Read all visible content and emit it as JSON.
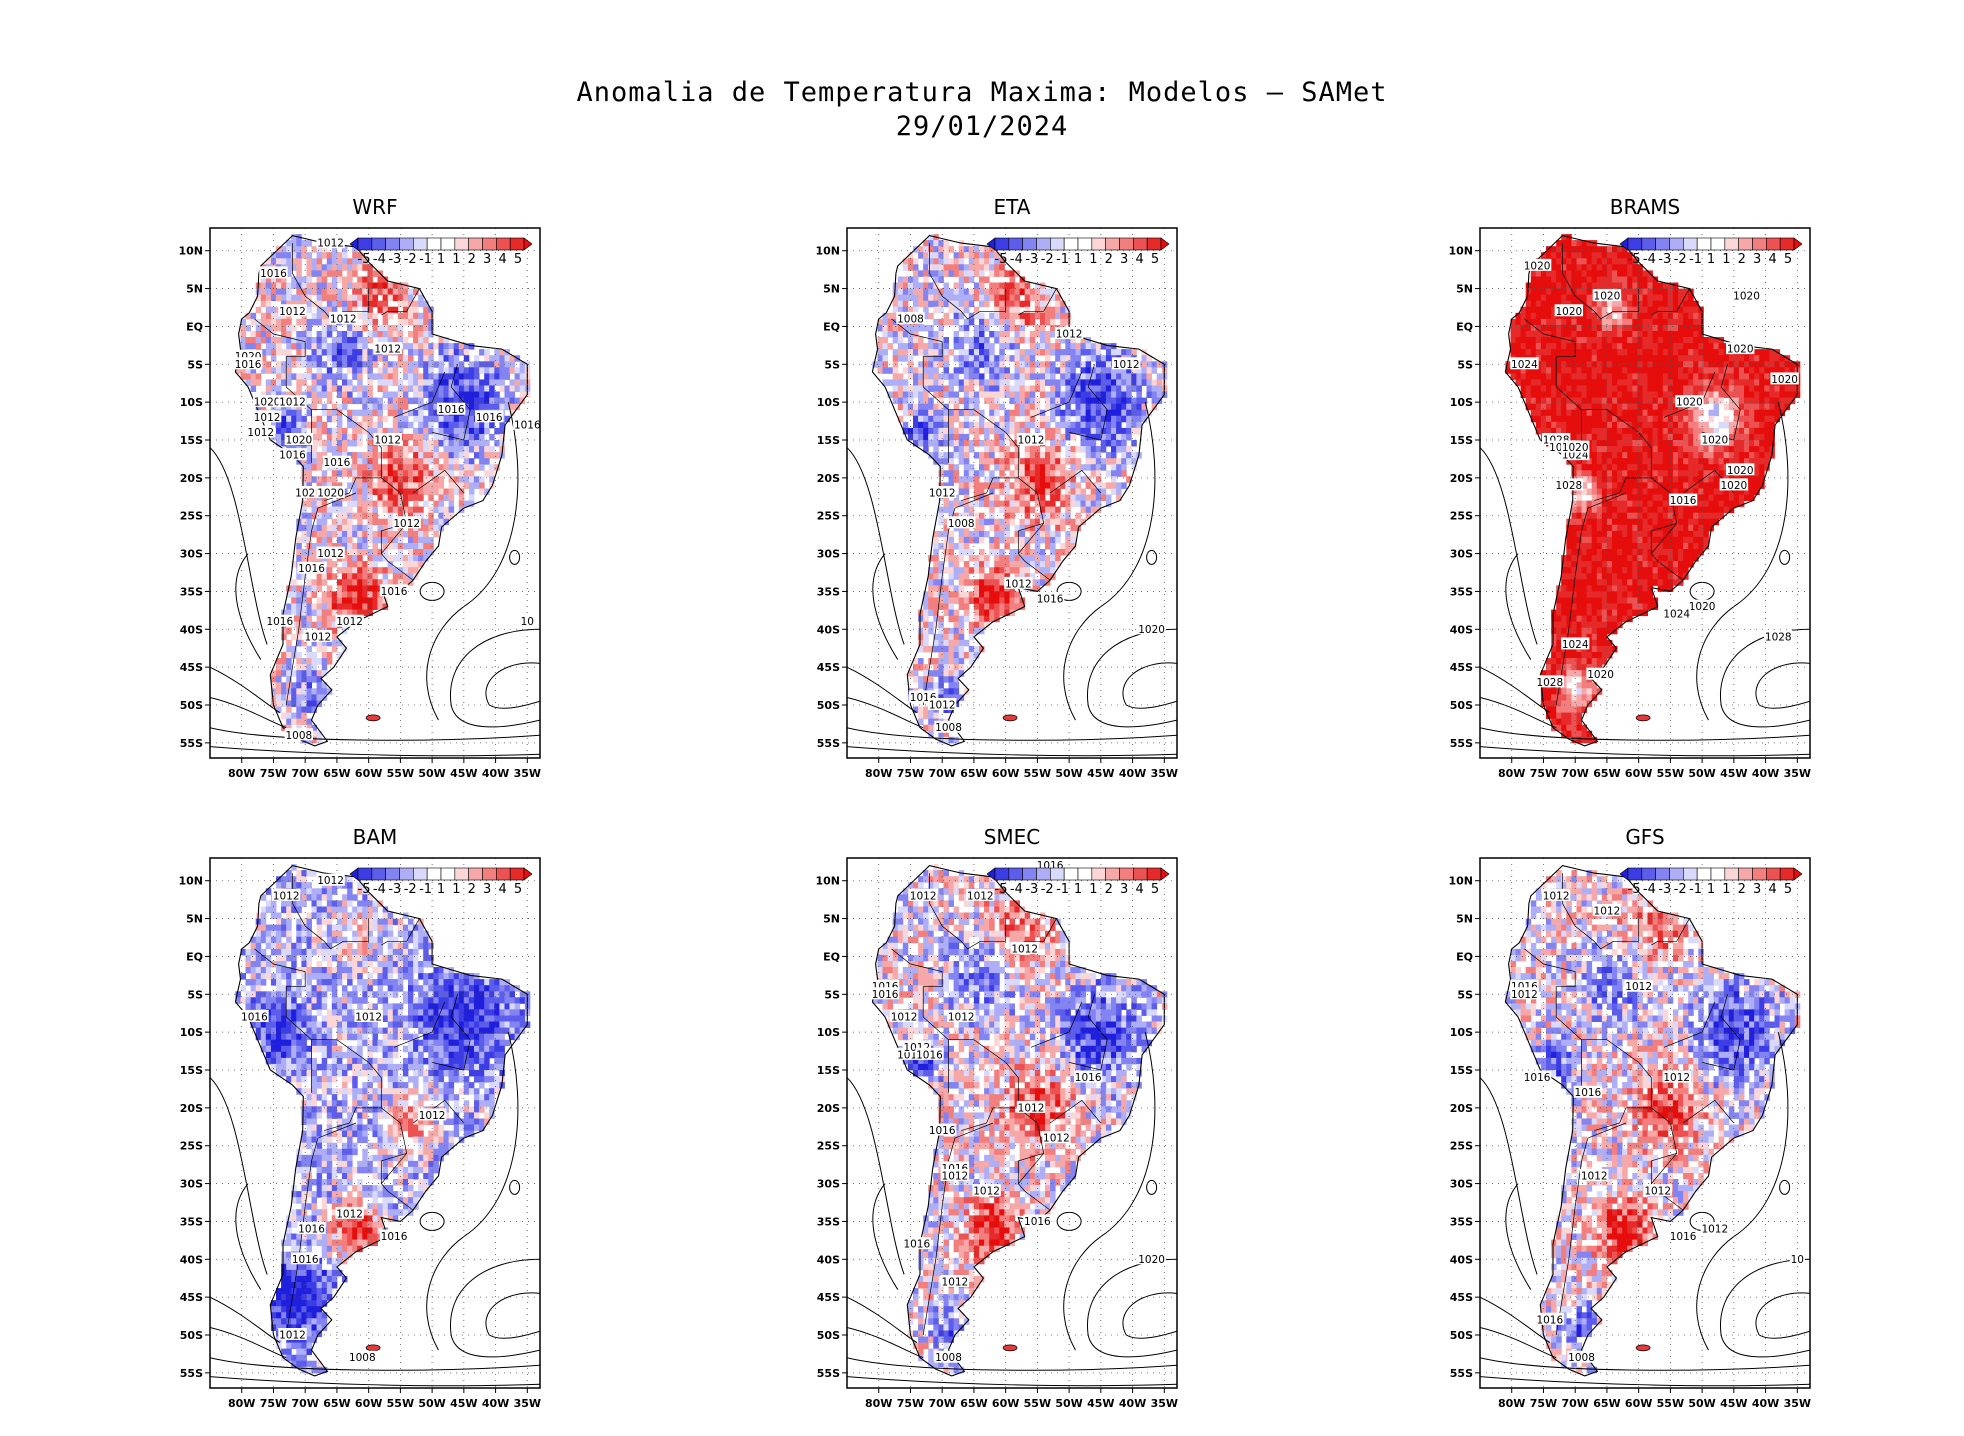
{
  "title": {
    "line1": "Anomalia de Temperatura Maxima: Modelos – SAMet",
    "line2": "29/01/2024"
  },
  "colorbar": {
    "labels": [
      "-5",
      "-4",
      "-3",
      "-2",
      "-1",
      "1",
      "1",
      "2",
      "3",
      "4",
      "5"
    ],
    "colors": [
      "#1f1fdc",
      "#3d3de6",
      "#5d5deb",
      "#8383f1",
      "#aeaef6",
      "#d9d9fb",
      "#ffffff",
      "#ffffff",
      "#fbd6d6",
      "#f6a8a8",
      "#f27e7e",
      "#ec5252",
      "#e62a2a",
      "#e60d0d"
    ]
  },
  "axes": {
    "lat_labels": [
      "10N",
      "5N",
      "EQ",
      "5S",
      "10S",
      "15S",
      "20S",
      "25S",
      "30S",
      "35S",
      "40S",
      "45S",
      "50S",
      "55S"
    ],
    "lon_labels": [
      "80W",
      "75W",
      "70W",
      "65W",
      "60W",
      "55W",
      "50W",
      "45W",
      "40W",
      "35W"
    ]
  },
  "panels": [
    {
      "name": "WRF",
      "bias": "mixed",
      "isobars": [
        {
          "text": "1012",
          "lon": -66,
          "lat": 11
        },
        {
          "text": "1016",
          "lon": -75,
          "lat": 7
        },
        {
          "text": "1012",
          "lon": -72,
          "lat": 2
        },
        {
          "text": "1012",
          "lon": -64,
          "lat": 1
        },
        {
          "text": "1012",
          "lon": -57,
          "lat": -3
        },
        {
          "text": "1020",
          "lon": -79,
          "lat": -4
        },
        {
          "text": "1016",
          "lon": -79,
          "lat": -5
        },
        {
          "text": "1020",
          "lon": -76,
          "lat": -10
        },
        {
          "text": "1012",
          "lon": -72,
          "lat": -10
        },
        {
          "text": "1012",
          "lon": -76,
          "lat": -12
        },
        {
          "text": "1012",
          "lon": -77,
          "lat": -14
        },
        {
          "text": "1020",
          "lon": -71,
          "lat": -15
        },
        {
          "text": "1016",
          "lon": -72,
          "lat": -17
        },
        {
          "text": "1012",
          "lon": -57,
          "lat": -15
        },
        {
          "text": "1016",
          "lon": -65,
          "lat": -18
        },
        {
          "text": "1016",
          "lon": -47,
          "lat": -11
        },
        {
          "text": "1016",
          "lon": -41,
          "lat": -12
        },
        {
          "text": "1016",
          "lon": -35,
          "lat": -13
        },
        {
          "text": "102",
          "lon": -70,
          "lat": -22
        },
        {
          "text": "1020",
          "lon": -66,
          "lat": -22
        },
        {
          "text": "1012",
          "lon": -54,
          "lat": -26
        },
        {
          "text": "1012",
          "lon": -66,
          "lat": -30
        },
        {
          "text": "1016",
          "lon": -69,
          "lat": -32
        },
        {
          "text": "1016",
          "lon": -56,
          "lat": -35
        },
        {
          "text": "1016",
          "lon": -74,
          "lat": -39
        },
        {
          "text": "1012",
          "lon": -63,
          "lat": -39
        },
        {
          "text": "1012",
          "lon": -68,
          "lat": -41
        },
        {
          "text": "10",
          "lon": -35,
          "lat": -39
        },
        {
          "text": "1008",
          "lon": -71,
          "lat": -54
        }
      ]
    },
    {
      "name": "ETA",
      "bias": "mixed",
      "isobars": [
        {
          "text": "1008",
          "lon": -75,
          "lat": 1
        },
        {
          "text": "1012",
          "lon": -50,
          "lat": -1
        },
        {
          "text": "1012",
          "lon": -41,
          "lat": -5
        },
        {
          "text": "1012",
          "lon": -56,
          "lat": -15
        },
        {
          "text": "1012",
          "lon": -70,
          "lat": -22
        },
        {
          "text": "1008",
          "lon": -67,
          "lat": -26
        },
        {
          "text": "1012",
          "lon": -58,
          "lat": -34
        },
        {
          "text": "1016",
          "lon": -53,
          "lat": -36
        },
        {
          "text": "1020",
          "lon": -37,
          "lat": -40
        },
        {
          "text": "1016",
          "lon": -73,
          "lat": -49
        },
        {
          "text": "1012",
          "lon": -70,
          "lat": -50
        },
        {
          "text": "1008",
          "lon": -69,
          "lat": -53
        }
      ]
    },
    {
      "name": "BRAMS",
      "bias": "warm",
      "isobars": [
        {
          "text": "1020",
          "lon": -76,
          "lat": 8
        },
        {
          "text": "1020",
          "lon": -65,
          "lat": 4
        },
        {
          "text": "1020",
          "lon": -43,
          "lat": 4
        },
        {
          "text": "1020",
          "lon": -71,
          "lat": 2
        },
        {
          "text": "1020",
          "lon": -44,
          "lat": -3
        },
        {
          "text": "1020",
          "lon": -37,
          "lat": -7
        },
        {
          "text": "1024",
          "lon": -78,
          "lat": -5
        },
        {
          "text": "1020",
          "lon": -52,
          "lat": -10
        },
        {
          "text": "1020",
          "lon": -48,
          "lat": -15
        },
        {
          "text": "1028",
          "lon": -73,
          "lat": -15
        },
        {
          "text": "1024",
          "lon": -72,
          "lat": -16
        },
        {
          "text": "1024",
          "lon": -70,
          "lat": -17
        },
        {
          "text": "1020",
          "lon": -70,
          "lat": -16
        },
        {
          "text": "1020",
          "lon": -44,
          "lat": -19
        },
        {
          "text": "1020",
          "lon": -45,
          "lat": -21
        },
        {
          "text": "1028",
          "lon": -71,
          "lat": -21
        },
        {
          "text": "1016",
          "lon": -53,
          "lat": -23
        },
        {
          "text": "1020",
          "lon": -50,
          "lat": -37
        },
        {
          "text": "1024",
          "lon": -54,
          "lat": -38
        },
        {
          "text": "1028",
          "lon": -38,
          "lat": -41
        },
        {
          "text": "1024",
          "lon": -70,
          "lat": -42
        },
        {
          "text": "1020",
          "lon": -66,
          "lat": -46
        },
        {
          "text": "1028",
          "lon": -74,
          "lat": -47
        }
      ]
    },
    {
      "name": "BAM",
      "bias": "cold",
      "isobars": [
        {
          "text": "1012",
          "lon": -66,
          "lat": 10
        },
        {
          "text": "1012",
          "lon": -73,
          "lat": 8
        },
        {
          "text": "1016",
          "lon": -78,
          "lat": -8
        },
        {
          "text": "1012",
          "lon": -60,
          "lat": -8
        },
        {
          "text": "1012",
          "lon": -50,
          "lat": -21
        },
        {
          "text": "1012",
          "lon": -63,
          "lat": -34
        },
        {
          "text": "1016",
          "lon": -69,
          "lat": -36
        },
        {
          "text": "1016",
          "lon": -56,
          "lat": -37
        },
        {
          "text": "1016",
          "lon": -70,
          "lat": -40
        },
        {
          "text": "1012",
          "lon": -72,
          "lat": -50
        },
        {
          "text": "1008",
          "lon": -61,
          "lat": -53
        }
      ]
    },
    {
      "name": "SMEC",
      "bias": "mixed",
      "isobars": [
        {
          "text": "1016",
          "lon": -53,
          "lat": 12
        },
        {
          "text": "1012",
          "lon": -73,
          "lat": 8
        },
        {
          "text": "1012",
          "lon": -64,
          "lat": 8
        },
        {
          "text": "1012",
          "lon": -57,
          "lat": 1
        },
        {
          "text": "1016",
          "lon": -79,
          "lat": -4
        },
        {
          "text": "1016",
          "lon": -79,
          "lat": -5
        },
        {
          "text": "1012",
          "lon": -76,
          "lat": -8
        },
        {
          "text": "1012",
          "lon": -67,
          "lat": -8
        },
        {
          "text": "1012",
          "lon": -75,
          "lat": -13
        },
        {
          "text": "1012",
          "lon": -74,
          "lat": -12
        },
        {
          "text": "1016",
          "lon": -72,
          "lat": -13
        },
        {
          "text": "1016",
          "lon": -47,
          "lat": -16
        },
        {
          "text": "1016",
          "lon": -70,
          "lat": -23
        },
        {
          "text": "1012",
          "lon": -56,
          "lat": -20
        },
        {
          "text": "1012",
          "lon": -52,
          "lat": -24
        },
        {
          "text": "1016",
          "lon": -68,
          "lat": -28
        },
        {
          "text": "1012",
          "lon": -68,
          "lat": -29
        },
        {
          "text": "1012",
          "lon": -63,
          "lat": -31
        },
        {
          "text": "1016",
          "lon": -55,
          "lat": -35
        },
        {
          "text": "1016",
          "lon": -74,
          "lat": -38
        },
        {
          "text": "1012",
          "lon": -68,
          "lat": -43
        },
        {
          "text": "1020",
          "lon": -37,
          "lat": -40
        },
        {
          "text": "1008",
          "lon": -69,
          "lat": -53
        }
      ]
    },
    {
      "name": "GFS",
      "bias": "mixed",
      "isobars": [
        {
          "text": "1012",
          "lon": -73,
          "lat": 8
        },
        {
          "text": "1012",
          "lon": -65,
          "lat": 6
        },
        {
          "text": "1016",
          "lon": -78,
          "lat": -4
        },
        {
          "text": "1012",
          "lon": -78,
          "lat": -5
        },
        {
          "text": "1012",
          "lon": -60,
          "lat": -4
        },
        {
          "text": "1016",
          "lon": -76,
          "lat": -16
        },
        {
          "text": "1016",
          "lon": -68,
          "lat": -18
        },
        {
          "text": "1012",
          "lon": -54,
          "lat": -16
        },
        {
          "text": "1012",
          "lon": -67,
          "lat": -29
        },
        {
          "text": "1012",
          "lon": -57,
          "lat": -31
        },
        {
          "text": "1012",
          "lon": -48,
          "lat": -36
        },
        {
          "text": "1016",
          "lon": -53,
          "lat": -37
        },
        {
          "text": "10",
          "lon": -35,
          "lat": -40
        },
        {
          "text": "1016",
          "lon": -74,
          "lat": -48
        },
        {
          "text": "1008",
          "lon": -69,
          "lat": -53
        }
      ]
    }
  ]
}
